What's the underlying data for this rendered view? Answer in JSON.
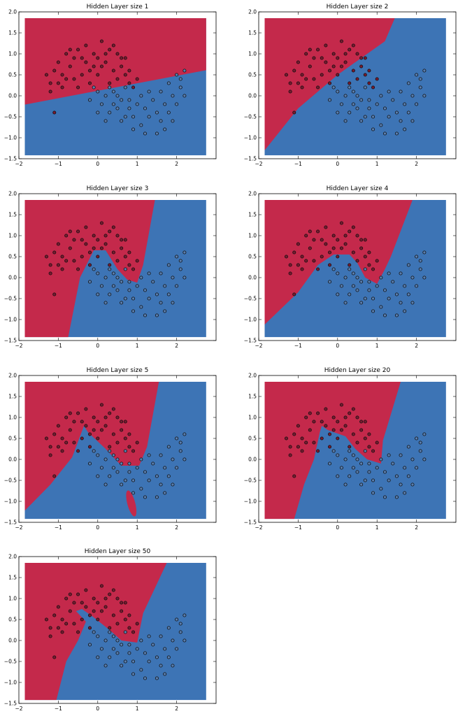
{
  "figure": {
    "layout": "4x2 grid of decision-boundary scatter plots",
    "colors": {
      "class_0": "#c4294b",
      "class_1": "#3d74b5",
      "point_edge": "#111111"
    }
  },
  "chart_data": [
    {
      "type": "scatter",
      "title": "Hidden Layer size 1",
      "hidden_layer_size": 1,
      "xlim": [
        -2,
        3
      ],
      "ylim": [
        -1.5,
        2
      ],
      "grid": false,
      "xticks": [
        "−2",
        "−1",
        "0",
        "1",
        "2"
      ],
      "yticks": [
        "−1.5",
        "−1.0",
        "−0.5",
        "0.0",
        "0.5",
        "1.0",
        "1.5",
        "2.0"
      ],
      "boundary": [
        [
          -1.85,
          -0.21
        ],
        [
          2.75,
          0.61
        ]
      ],
      "red_side": "top"
    },
    {
      "type": "scatter",
      "title": "Hidden Layer size 2",
      "hidden_layer_size": 2,
      "xlim": [
        -2,
        3
      ],
      "ylim": [
        -1.5,
        2
      ],
      "grid": false,
      "xticks": [
        "−2",
        "−1",
        "0",
        "1",
        "2"
      ],
      "yticks": [
        "−1.5",
        "−1.0",
        "−0.5",
        "0.0",
        "0.5",
        "1.0",
        "1.5",
        "2.0"
      ],
      "boundary": [
        [
          -1.85,
          -1.3
        ],
        [
          -1.0,
          -0.3
        ],
        [
          0.0,
          0.5
        ],
        [
          1.2,
          1.3
        ],
        [
          1.45,
          1.85
        ]
      ],
      "red_side": "left"
    },
    {
      "type": "scatter",
      "title": "Hidden Layer size 3",
      "hidden_layer_size": 3,
      "xlim": [
        -2,
        3
      ],
      "ylim": [
        -1.5,
        2
      ],
      "grid": false,
      "xticks": [
        "−2",
        "−1",
        "0",
        "1",
        "2"
      ],
      "yticks": [
        "−1.5",
        "−1.0",
        "−0.5",
        "0.0",
        "0.5",
        "1.0",
        "1.5",
        "2.0"
      ],
      "boundary": [
        [
          -0.75,
          -1.42
        ],
        [
          -0.45,
          0.0
        ],
        [
          -0.1,
          0.65
        ],
        [
          0.2,
          0.65
        ],
        [
          0.5,
          0.2
        ],
        [
          0.75,
          -0.05
        ],
        [
          1.0,
          -0.12
        ],
        [
          1.15,
          0.3
        ],
        [
          1.45,
          1.85
        ]
      ],
      "red_side": "left"
    },
    {
      "type": "scatter",
      "title": "Hidden Layer size 4",
      "hidden_layer_size": 4,
      "xlim": [
        -2,
        3
      ],
      "ylim": [
        -1.5,
        2
      ],
      "grid": false,
      "xticks": [
        "−2",
        "−1",
        "0",
        "1",
        "2"
      ],
      "yticks": [
        "−1.5",
        "−1.0",
        "−0.5",
        "0.0",
        "0.5",
        "1.0",
        "1.5",
        "2.0"
      ],
      "boundary": [
        [
          -1.85,
          -1.12
        ],
        [
          -1.0,
          -0.35
        ],
        [
          -0.5,
          0.3
        ],
        [
          -0.1,
          0.55
        ],
        [
          0.3,
          0.55
        ],
        [
          0.5,
          0.35
        ],
        [
          0.7,
          0.0
        ],
        [
          1.0,
          -0.15
        ],
        [
          1.2,
          0.2
        ],
        [
          1.35,
          0.5
        ],
        [
          1.9,
          1.85
        ]
      ],
      "red_side": "left"
    },
    {
      "type": "scatter",
      "title": "Hidden Layer size 5",
      "hidden_layer_size": 5,
      "xlim": [
        -2,
        3
      ],
      "ylim": [
        -1.5,
        2
      ],
      "grid": false,
      "xticks": [
        "−2",
        "−1",
        "0",
        "1",
        "2"
      ],
      "yticks": [
        "−1.5",
        "−1.0",
        "−0.5",
        "0.0",
        "0.5",
        "1.0",
        "1.5",
        "2.0"
      ],
      "boundary": [
        [
          -1.85,
          -1.22
        ],
        [
          -1.2,
          -0.6
        ],
        [
          -0.65,
          0.05
        ],
        [
          -0.45,
          0.55
        ],
        [
          -0.35,
          0.8
        ],
        [
          -0.25,
          0.65
        ],
        [
          0.2,
          0.25
        ],
        [
          0.6,
          -0.15
        ],
        [
          1.05,
          -0.15
        ],
        [
          1.25,
          0.3
        ],
        [
          1.55,
          1.85
        ]
      ],
      "red_island": {
        "cx": 0.85,
        "cy": -1.05,
        "rx": 0.1,
        "ry": 0.32
      },
      "red_side": "left"
    },
    {
      "type": "scatter",
      "title": "Hidden Layer size 20",
      "hidden_layer_size": 20,
      "xlim": [
        -2,
        3
      ],
      "ylim": [
        -1.5,
        2
      ],
      "grid": false,
      "xticks": [
        "−2",
        "−1",
        "0",
        "1",
        "2"
      ],
      "yticks": [
        "−1.5",
        "−1.0",
        "−0.5",
        "0.0",
        "0.5",
        "1.0",
        "1.5",
        "2.0"
      ],
      "boundary": [
        [
          -1.1,
          -1.42
        ],
        [
          -0.85,
          -0.6
        ],
        [
          -0.6,
          0.0
        ],
        [
          -0.45,
          0.65
        ],
        [
          -0.4,
          0.8
        ],
        [
          -0.25,
          0.7
        ],
        [
          0.2,
          0.55
        ],
        [
          0.45,
          0.25
        ],
        [
          0.75,
          0.0
        ],
        [
          1.1,
          -0.1
        ],
        [
          1.15,
          0.45
        ],
        [
          1.6,
          1.85
        ]
      ],
      "red_side": "left"
    },
    {
      "type": "scatter",
      "title": "Hidden Layer size 50",
      "hidden_layer_size": 50,
      "xlim": [
        -2,
        3
      ],
      "ylim": [
        -1.5,
        2
      ],
      "grid": false,
      "xticks": [
        "−2",
        "−1",
        "0",
        "1",
        "2"
      ],
      "yticks": [
        "−1.5",
        "−1.0",
        "−0.5",
        "0.0",
        "0.5",
        "1.0",
        "1.5",
        "2.0"
      ],
      "boundary": [
        [
          -1.05,
          -1.42
        ],
        [
          -0.8,
          -0.5
        ],
        [
          -0.5,
          0.0
        ],
        [
          -0.3,
          0.45
        ],
        [
          -0.55,
          0.7
        ],
        [
          -0.4,
          0.75
        ],
        [
          -0.1,
          0.55
        ],
        [
          0.3,
          0.25
        ],
        [
          0.6,
          0.0
        ],
        [
          1.0,
          -0.05
        ],
        [
          1.15,
          0.65
        ],
        [
          1.75,
          1.85
        ]
      ],
      "red_side": "left"
    }
  ],
  "points": [
    [
      -1.3,
      0.5,
      0
    ],
    [
      -1.2,
      0.3,
      0
    ],
    [
      -1.1,
      0.6,
      0
    ],
    [
      -1.0,
      0.8,
      0
    ],
    [
      -0.9,
      0.5,
      0
    ],
    [
      -0.8,
      1.0,
      0
    ],
    [
      -0.7,
      0.7,
      0
    ],
    [
      -0.6,
      0.4,
      0
    ],
    [
      -0.5,
      1.1,
      0
    ],
    [
      -0.4,
      0.9,
      0
    ],
    [
      -0.3,
      1.2,
      0
    ],
    [
      -0.2,
      0.6,
      0
    ],
    [
      -0.1,
      1.0,
      0
    ],
    [
      0.0,
      0.9,
      0
    ],
    [
      0.1,
      1.3,
      0
    ],
    [
      0.2,
      0.8,
      0
    ],
    [
      0.3,
      1.1,
      0
    ],
    [
      0.4,
      0.6,
      0
    ],
    [
      0.5,
      1.0,
      0
    ],
    [
      0.6,
      0.7,
      0
    ],
    [
      0.7,
      0.5,
      0
    ],
    [
      0.8,
      0.3,
      0
    ],
    [
      0.9,
      0.2,
      0
    ],
    [
      1.0,
      0.4,
      0
    ],
    [
      -1.2,
      0.1,
      0
    ],
    [
      -0.9,
      0.2,
      0
    ],
    [
      -0.6,
      0.9,
      0
    ],
    [
      -0.4,
      0.5,
      0
    ],
    [
      0.1,
      0.7,
      0
    ],
    [
      0.4,
      1.2,
      0
    ],
    [
      0.6,
      0.9,
      0
    ],
    [
      0.8,
      0.6,
      0
    ],
    [
      -0.7,
      1.1,
      0
    ],
    [
      -0.2,
      0.3,
      0
    ],
    [
      0.0,
      0.5,
      0
    ],
    [
      0.3,
      0.3,
      0
    ],
    [
      -1.1,
      -0.4,
      0
    ],
    [
      -0.8,
      0.4,
      0
    ],
    [
      -0.5,
      0.2,
      0
    ],
    [
      0.2,
      1.0,
      0
    ],
    [
      -0.3,
      0.8,
      0
    ],
    [
      0.7,
      0.9,
      0
    ],
    [
      -1.0,
      0.3,
      0
    ],
    [
      -0.1,
      0.7,
      0
    ],
    [
      0.5,
      0.4,
      0
    ],
    [
      0.0,
      0.1,
      1
    ],
    [
      0.1,
      -0.2,
      1
    ],
    [
      0.2,
      0.0,
      1
    ],
    [
      0.3,
      -0.4,
      1
    ],
    [
      0.4,
      0.1,
      1
    ],
    [
      0.5,
      -0.3,
      1
    ],
    [
      0.6,
      -0.6,
      1
    ],
    [
      0.7,
      0.2,
      1
    ],
    [
      0.8,
      -0.1,
      1
    ],
    [
      0.9,
      -0.5,
      1
    ],
    [
      1.0,
      -0.2,
      1
    ],
    [
      1.1,
      -0.7,
      1
    ],
    [
      1.2,
      -0.3,
      1
    ],
    [
      1.3,
      -0.5,
      1
    ],
    [
      1.4,
      -0.1,
      1
    ],
    [
      1.5,
      -0.4,
      1
    ],
    [
      1.6,
      0.1,
      1
    ],
    [
      1.7,
      -0.2,
      1
    ],
    [
      1.8,
      0.3,
      1
    ],
    [
      1.9,
      0.0,
      1
    ],
    [
      2.0,
      0.5,
      1
    ],
    [
      2.1,
      0.2,
      1
    ],
    [
      2.2,
      0.6,
      1
    ],
    [
      1.9,
      -0.6,
      1
    ],
    [
      1.7,
      -0.8,
      1
    ],
    [
      1.5,
      -0.9,
      1
    ],
    [
      0.5,
      0.0,
      1
    ],
    [
      0.2,
      -0.6,
      1
    ],
    [
      -0.1,
      0.2,
      1
    ],
    [
      0.0,
      -0.4,
      1
    ],
    [
      0.4,
      -0.2,
      1
    ],
    [
      0.9,
      -0.8,
      1
    ],
    [
      1.3,
      0.1,
      1
    ],
    [
      1.6,
      -0.6,
      1
    ],
    [
      2.0,
      -0.2,
      1
    ],
    [
      2.1,
      0.4,
      1
    ],
    [
      0.7,
      -0.5,
      1
    ],
    [
      1.1,
      0.0,
      1
    ],
    [
      0.3,
      0.2,
      1
    ],
    [
      -0.2,
      -0.1,
      1
    ],
    [
      0.8,
      -0.3,
      1
    ],
    [
      1.2,
      -0.9,
      1
    ],
    [
      2.2,
      0.0,
      1
    ],
    [
      1.8,
      -0.4,
      1
    ],
    [
      0.6,
      -0.1,
      1
    ]
  ]
}
